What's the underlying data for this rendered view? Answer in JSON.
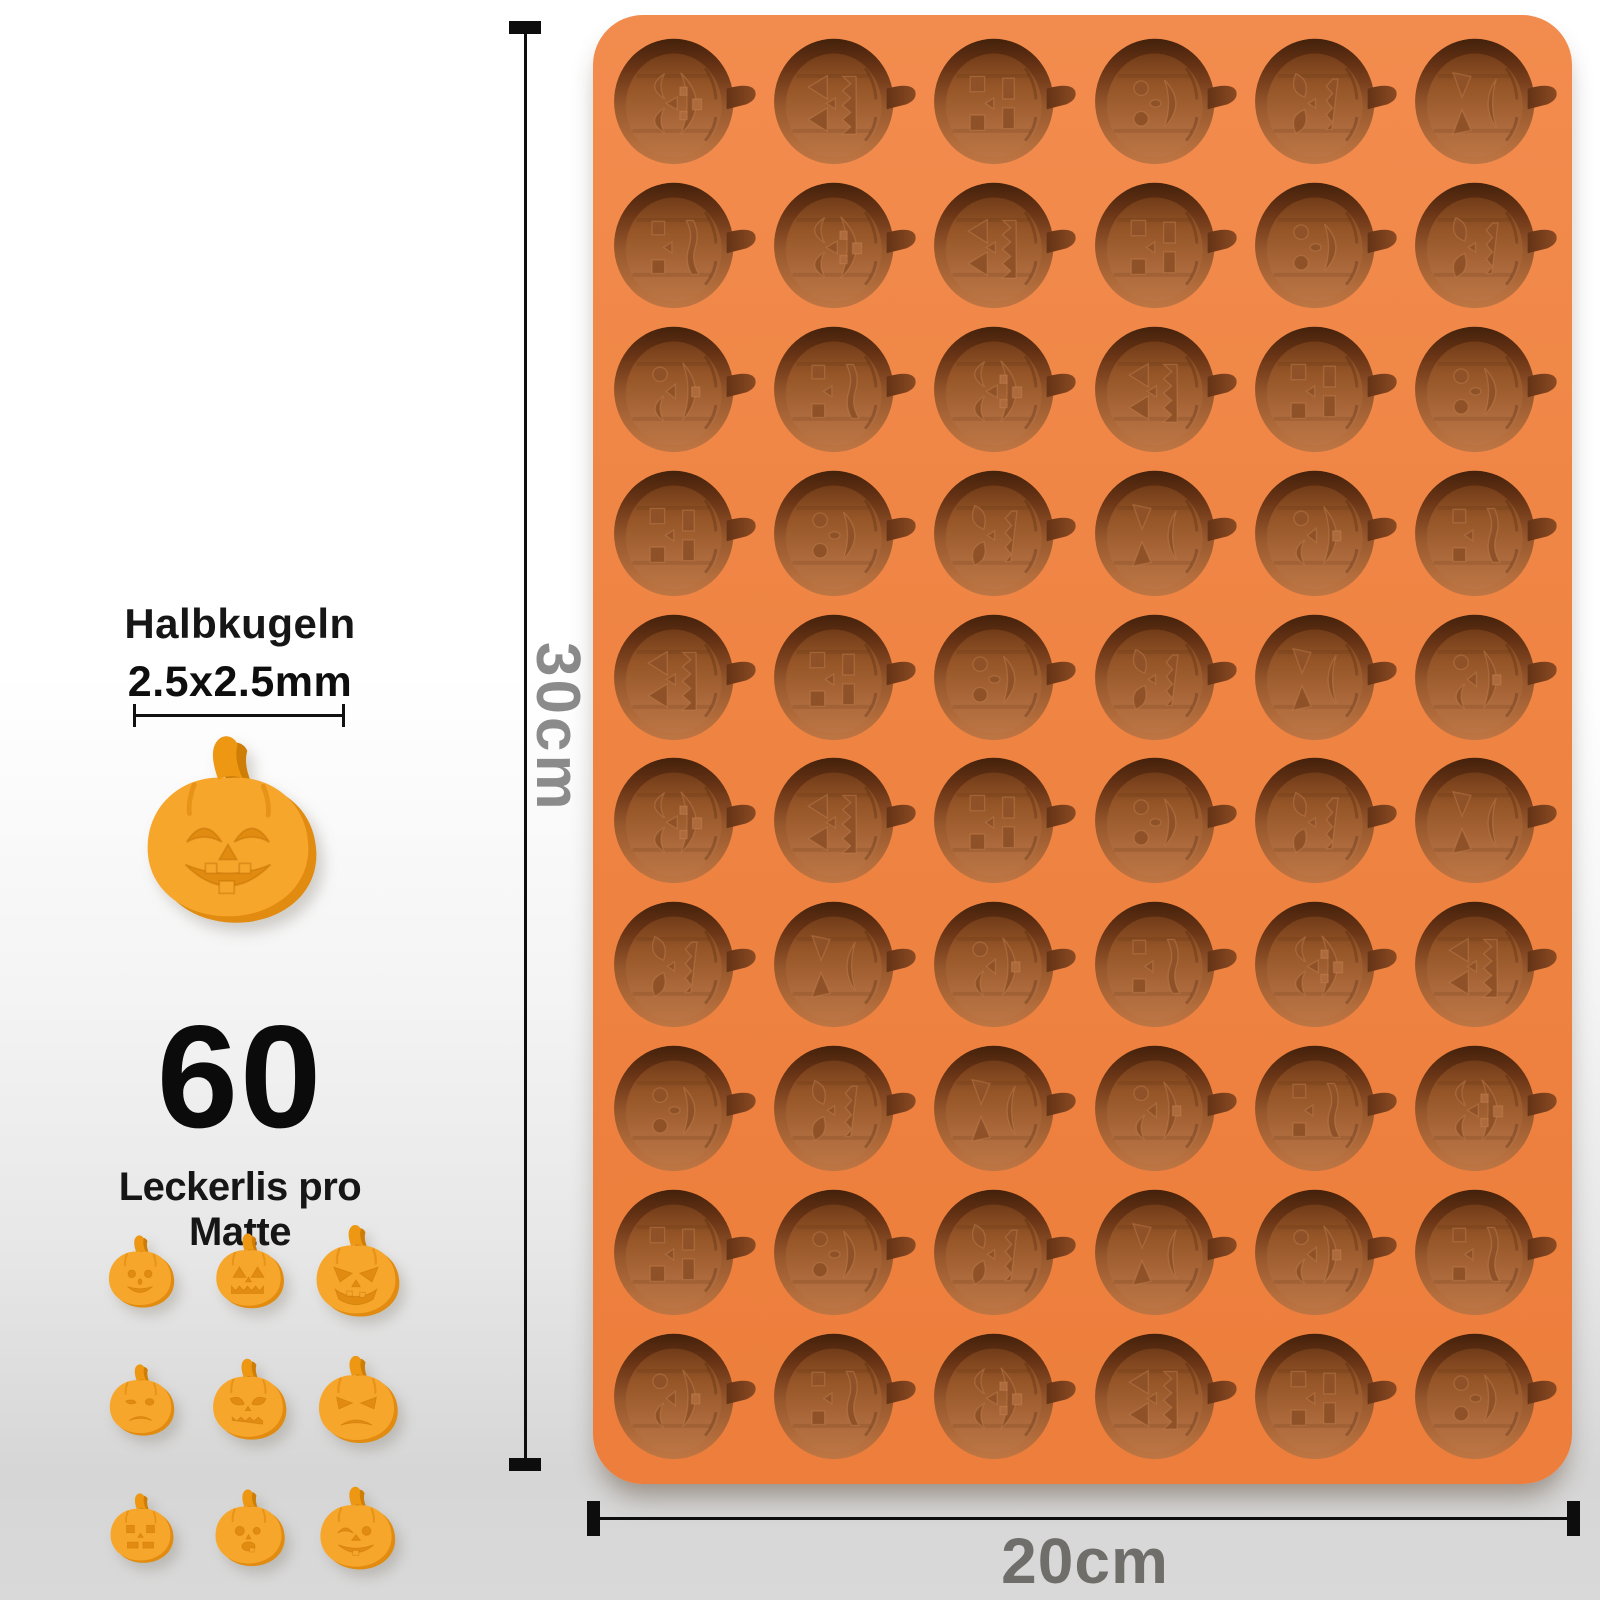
{
  "labels": {
    "halbkugeln": "Halbkugeln",
    "size": "2.5x2.5mm",
    "count": "60",
    "count_caption": "Leckerlis pro Matte",
    "height": "30cm",
    "width": "20cm"
  },
  "mold": {
    "rows": 10,
    "cols": 6,
    "total_cavities": 60,
    "surface_color": "#EF8443",
    "cavity_floor_color": "#AD6A3C",
    "cavity_shadow_color": "#4A2409",
    "cavity_face_color": "#8F5128",
    "cavity_face_cycle": [
      "happy",
      "classic",
      "square",
      "round",
      "scared",
      "angry",
      "wink",
      "grumpy"
    ]
  },
  "samples": {
    "pumpkin_color": "#F7A62C",
    "pumpkin_side_color": "#E18C10",
    "pumpkin_face_color": "#E18B10",
    "large_face": "happy",
    "grid_faces": [
      "round",
      "classic",
      "evil",
      "sad",
      "scared",
      "angry",
      "square",
      "surprised",
      "wink"
    ]
  },
  "annotation_colors": {
    "dimension_line": "#0D0D0D",
    "height_label": "#8B8B8B",
    "width_label": "#6F6E6A",
    "text": "#161616"
  }
}
